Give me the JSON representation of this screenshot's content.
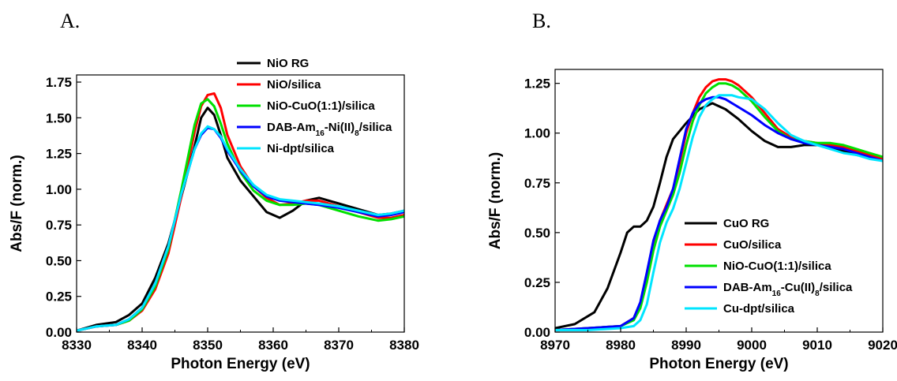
{
  "figure_labels": [
    "A.",
    "B."
  ],
  "chart_data": [
    {
      "type": "line",
      "panel": "A.",
      "xlabel": "Photon Energy (eV)",
      "ylabel": "Abs/F (norm.)",
      "xlim": [
        8330,
        8380
      ],
      "ylim": [
        0,
        1.8
      ],
      "xticks": [
        8330,
        8340,
        8350,
        8360,
        8370,
        8380
      ],
      "xtick_labels": [
        "8330",
        "8340",
        "8350",
        "8360",
        "8370",
        "8380"
      ],
      "yticks": [
        0,
        0.25,
        0.5,
        0.75,
        1.0,
        1.25,
        1.5,
        1.75
      ],
      "ytick_labels": [
        "0.00",
        "0.25",
        "0.50",
        "0.75",
        "1.00",
        "1.25",
        "1.50",
        "1.75"
      ],
      "grid": false,
      "legend_position": "top-right",
      "series": [
        {
          "name": "NiO RG",
          "label_parts": [
            {
              "t": "NiO RG"
            }
          ],
          "color": "#000000",
          "x": [
            8330,
            8333,
            8336,
            8338,
            8340,
            8342,
            8344,
            8346,
            8348,
            8349,
            8350,
            8351,
            8352,
            8353,
            8355,
            8357,
            8359,
            8361,
            8363,
            8365,
            8367,
            8370,
            8373,
            8376,
            8378,
            8380
          ],
          "y": [
            0.01,
            0.05,
            0.07,
            0.12,
            0.2,
            0.38,
            0.62,
            0.95,
            1.3,
            1.5,
            1.57,
            1.52,
            1.38,
            1.22,
            1.06,
            0.95,
            0.84,
            0.8,
            0.85,
            0.92,
            0.94,
            0.9,
            0.86,
            0.82,
            0.83,
            0.85
          ]
        },
        {
          "name": "NiO/silica",
          "label_parts": [
            {
              "t": "NiO/silica"
            }
          ],
          "color": "#ff0000",
          "x": [
            8330,
            8333,
            8336,
            8338,
            8340,
            8342,
            8344,
            8346,
            8348,
            8349,
            8350,
            8351,
            8352,
            8353,
            8355,
            8357,
            8359,
            8361,
            8363,
            8365,
            8367,
            8370,
            8373,
            8376,
            8378,
            8380
          ],
          "y": [
            0.01,
            0.04,
            0.05,
            0.08,
            0.15,
            0.3,
            0.55,
            0.95,
            1.4,
            1.58,
            1.66,
            1.67,
            1.57,
            1.38,
            1.16,
            1.02,
            0.94,
            0.89,
            0.9,
            0.92,
            0.92,
            0.88,
            0.84,
            0.8,
            0.8,
            0.82
          ]
        },
        {
          "name": "NiO-CuO(1:1)/silica",
          "label_parts": [
            {
              "t": "NiO-CuO(1:1)/silica"
            }
          ],
          "color": "#00e000",
          "x": [
            8330,
            8333,
            8336,
            8338,
            8340,
            8342,
            8344,
            8346,
            8348,
            8349,
            8350,
            8351,
            8352,
            8353,
            8355,
            8357,
            8359,
            8361,
            8363,
            8365,
            8367,
            8370,
            8373,
            8376,
            8378,
            8380
          ],
          "y": [
            0.01,
            0.04,
            0.05,
            0.08,
            0.16,
            0.32,
            0.58,
            1.0,
            1.45,
            1.6,
            1.63,
            1.58,
            1.46,
            1.32,
            1.12,
            0.99,
            0.92,
            0.89,
            0.89,
            0.9,
            0.89,
            0.85,
            0.81,
            0.78,
            0.79,
            0.81
          ]
        },
        {
          "name": "DAB-Am16-Ni(II)8/silica",
          "label_parts": [
            {
              "t": "DAB-Am"
            },
            {
              "t": "16",
              "sub": true
            },
            {
              "t": "-Ni(II)"
            },
            {
              "t": "8",
              "sub": true
            },
            {
              "t": "/silica"
            }
          ],
          "color": "#0000ff",
          "x": [
            8330,
            8333,
            8336,
            8338,
            8340,
            8342,
            8344,
            8346,
            8348,
            8349,
            8350,
            8351,
            8352,
            8353,
            8355,
            8357,
            8359,
            8361,
            8363,
            8365,
            8367,
            8370,
            8373,
            8376,
            8378,
            8380
          ],
          "y": [
            0.01,
            0.04,
            0.05,
            0.09,
            0.17,
            0.34,
            0.6,
            0.97,
            1.28,
            1.38,
            1.43,
            1.42,
            1.36,
            1.27,
            1.13,
            1.02,
            0.95,
            0.92,
            0.91,
            0.9,
            0.89,
            0.87,
            0.84,
            0.81,
            0.82,
            0.84
          ]
        },
        {
          "name": "Ni-dpt/silica",
          "label_parts": [
            {
              "t": "Ni-dpt/silica"
            }
          ],
          "color": "#00e5ff",
          "x": [
            8330,
            8333,
            8336,
            8338,
            8340,
            8342,
            8344,
            8346,
            8348,
            8349,
            8350,
            8351,
            8352,
            8353,
            8355,
            8357,
            8359,
            8361,
            8363,
            8365,
            8367,
            8370,
            8373,
            8376,
            8378,
            8380
          ],
          "y": [
            0.01,
            0.04,
            0.05,
            0.09,
            0.17,
            0.34,
            0.6,
            0.97,
            1.28,
            1.39,
            1.44,
            1.42,
            1.37,
            1.28,
            1.14,
            1.03,
            0.96,
            0.93,
            0.92,
            0.91,
            0.9,
            0.88,
            0.85,
            0.82,
            0.83,
            0.85
          ]
        }
      ]
    },
    {
      "type": "line",
      "panel": "B.",
      "xlabel": "Photon Energy (eV)",
      "ylabel": "Abs/F (norm.)",
      "xlim": [
        8970,
        9020
      ],
      "ylim": [
        0,
        1.32
      ],
      "xticks": [
        8970,
        8980,
        8990,
        9000,
        9010,
        9020
      ],
      "xtick_labels": [
        "8970",
        "8980",
        "8990",
        "9000",
        "9010",
        "9020"
      ],
      "yticks": [
        0,
        0.25,
        0.5,
        0.75,
        1.0,
        1.25
      ],
      "ytick_labels": [
        "0.00",
        "0.25",
        "0.50",
        "0.75",
        "1.00",
        "1.25"
      ],
      "grid": false,
      "legend_position": "bottom-right",
      "series": [
        {
          "name": "CuO RG",
          "label_parts": [
            {
              "t": "CuO RG"
            }
          ],
          "color": "#000000",
          "x": [
            8970,
            8973,
            8976,
            8978,
            8980,
            8981,
            8982,
            8983,
            8984,
            8985,
            8986,
            8987,
            8988,
            8989,
            8990,
            8992,
            8994,
            8996,
            8998,
            9000,
            9002,
            9004,
            9006,
            9008,
            9010,
            9012,
            9014,
            9016,
            9018,
            9020
          ],
          "y": [
            0.02,
            0.04,
            0.1,
            0.22,
            0.4,
            0.5,
            0.53,
            0.53,
            0.56,
            0.63,
            0.75,
            0.88,
            0.97,
            1.01,
            1.05,
            1.12,
            1.15,
            1.12,
            1.07,
            1.01,
            0.96,
            0.93,
            0.93,
            0.94,
            0.94,
            0.93,
            0.91,
            0.89,
            0.88,
            0.86
          ]
        },
        {
          "name": "CuO/silica",
          "label_parts": [
            {
              "t": "CuO/silica"
            }
          ],
          "color": "#ff0000",
          "x": [
            8970,
            8975,
            8980,
            8982,
            8983,
            8984,
            8985,
            8986,
            8987,
            8988,
            8989,
            8990,
            8991,
            8992,
            8993,
            8994,
            8995,
            8996,
            8997,
            8998,
            9000,
            9002,
            9004,
            9006,
            9008,
            9010,
            9012,
            9014,
            9016,
            9018,
            9020
          ],
          "y": [
            0.01,
            0.02,
            0.03,
            0.07,
            0.14,
            0.28,
            0.44,
            0.56,
            0.64,
            0.72,
            0.85,
            1.0,
            1.1,
            1.18,
            1.23,
            1.26,
            1.27,
            1.27,
            1.26,
            1.24,
            1.18,
            1.1,
            1.02,
            0.98,
            0.96,
            0.95,
            0.94,
            0.93,
            0.91,
            0.89,
            0.87
          ]
        },
        {
          "name": "NiO-CuO(1:1)/silica",
          "label_parts": [
            {
              "t": "NiO-CuO(1:1)/silica"
            }
          ],
          "color": "#00e000",
          "x": [
            8970,
            8975,
            8980,
            8982,
            8983,
            8984,
            8985,
            8986,
            8987,
            8988,
            8989,
            8990,
            8991,
            8992,
            8993,
            8994,
            8995,
            8996,
            8997,
            8998,
            9000,
            9002,
            9004,
            9006,
            9008,
            9010,
            9012,
            9014,
            9016,
            9018,
            9020
          ],
          "y": [
            0.01,
            0.02,
            0.03,
            0.06,
            0.12,
            0.25,
            0.41,
            0.53,
            0.61,
            0.69,
            0.8,
            0.94,
            1.06,
            1.14,
            1.2,
            1.23,
            1.25,
            1.25,
            1.24,
            1.22,
            1.16,
            1.08,
            1.01,
            0.97,
            0.96,
            0.95,
            0.95,
            0.94,
            0.92,
            0.9,
            0.88
          ]
        },
        {
          "name": "DAB-Am16-Cu(II)8/silica",
          "label_parts": [
            {
              "t": "DAB-Am"
            },
            {
              "t": "16",
              "sub": true
            },
            {
              "t": "-Cu(II)"
            },
            {
              "t": "8",
              "sub": true
            },
            {
              "t": "/silica"
            }
          ],
          "color": "#0000ff",
          "x": [
            8970,
            8975,
            8980,
            8982,
            8983,
            8984,
            8985,
            8986,
            8987,
            8988,
            8989,
            8990,
            8991,
            8992,
            8993,
            8994,
            8995,
            8996,
            8997,
            8998,
            9000,
            9002,
            9004,
            9006,
            9008,
            9010,
            9012,
            9014,
            9016,
            9018,
            9020
          ],
          "y": [
            0.01,
            0.02,
            0.03,
            0.07,
            0.15,
            0.3,
            0.46,
            0.56,
            0.63,
            0.72,
            0.87,
            1.02,
            1.1,
            1.15,
            1.17,
            1.18,
            1.18,
            1.17,
            1.15,
            1.13,
            1.09,
            1.04,
            1.0,
            0.97,
            0.95,
            0.94,
            0.93,
            0.92,
            0.9,
            0.88,
            0.86
          ]
        },
        {
          "name": "Cu-dpt/silica",
          "label_parts": [
            {
              "t": "Cu-dpt/silica"
            }
          ],
          "color": "#00e5ff",
          "x": [
            8970,
            8975,
            8980,
            8982,
            8983,
            8984,
            8985,
            8986,
            8987,
            8988,
            8989,
            8990,
            8991,
            8992,
            8993,
            8994,
            8995,
            8996,
            8997,
            8998,
            9000,
            9002,
            9004,
            9006,
            9008,
            9010,
            9012,
            9014,
            9016,
            9018,
            9020
          ],
          "y": [
            0.01,
            0.01,
            0.02,
            0.03,
            0.06,
            0.14,
            0.3,
            0.45,
            0.55,
            0.62,
            0.72,
            0.85,
            0.98,
            1.08,
            1.14,
            1.17,
            1.19,
            1.19,
            1.19,
            1.18,
            1.17,
            1.12,
            1.05,
            0.99,
            0.96,
            0.94,
            0.92,
            0.9,
            0.89,
            0.87,
            0.86
          ]
        }
      ]
    }
  ]
}
